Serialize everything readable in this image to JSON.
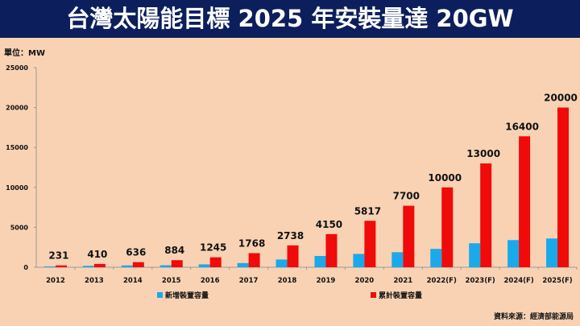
{
  "title": "台灣太陽能目標 2025 年安裝量達 20GW",
  "unit_label": "單位：MW",
  "source": "資料來源：經濟部能源局",
  "chart_data": {
    "type": "bar",
    "title": "台灣太陽能目標 2025 年安裝量達 20GW",
    "ylabel": "單位：MW",
    "ylim": [
      0,
      25000
    ],
    "yticks": [
      0,
      5000,
      10000,
      15000,
      20000,
      25000
    ],
    "categories": [
      "2012",
      "2013",
      "2014",
      "2015",
      "2016",
      "2017",
      "2018",
      "2019",
      "2020",
      "2021",
      "2022(F)",
      "2023(F)",
      "2024(F)",
      "2025(F)"
    ],
    "series": [
      {
        "name": "新增裝置容量",
        "color": "#1aa9ea",
        "values": [
          100,
          179,
          226,
          248,
          361,
          523,
          970,
          1412,
          1667,
          1883,
          2300,
          3000,
          3400,
          3600
        ]
      },
      {
        "name": "累計裝置容量",
        "color": "#f00a0a",
        "values": [
          231,
          410,
          636,
          884,
          1245,
          1768,
          2738,
          4150,
          5817,
          7700,
          10000,
          13000,
          16400,
          20000
        ],
        "labels": [
          "231",
          "410",
          "636",
          "884",
          "1245",
          "1768",
          "2738",
          "4150",
          "5817",
          "7700",
          "10000",
          "13000",
          "16400",
          "20000"
        ]
      }
    ],
    "legend": "bottom"
  }
}
